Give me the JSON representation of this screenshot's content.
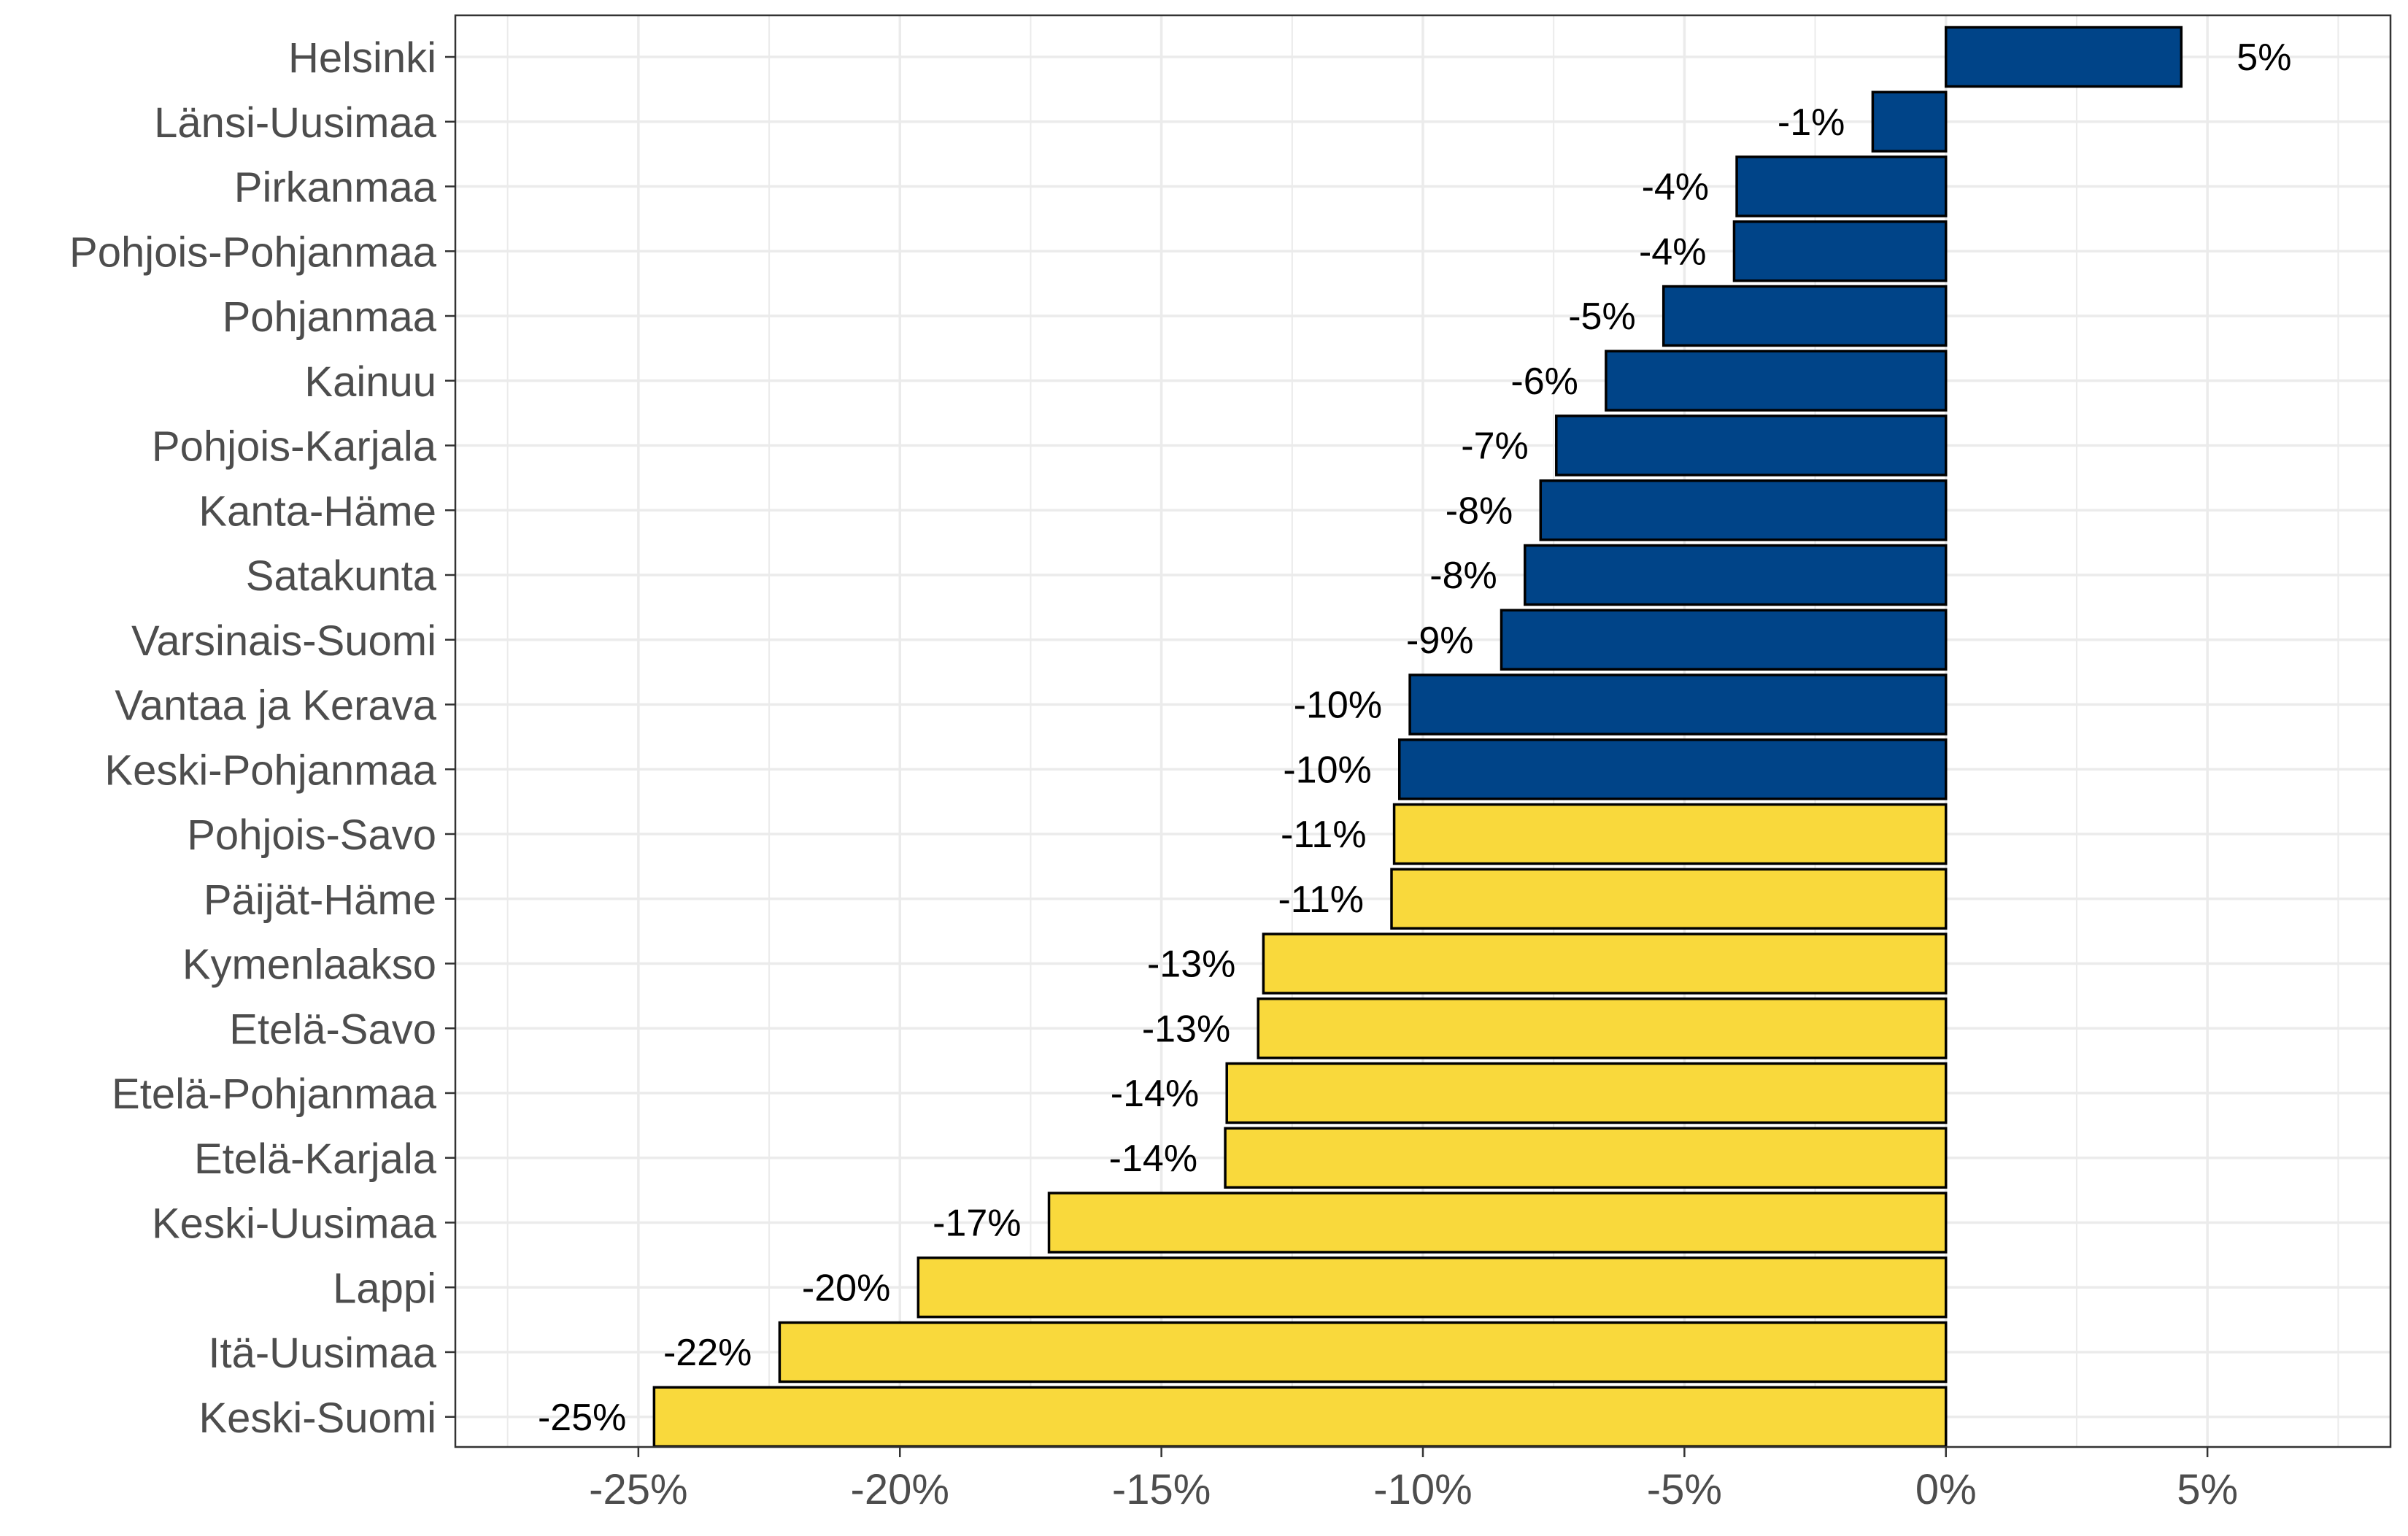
{
  "chart_data": {
    "type": "bar",
    "orientation": "horizontal",
    "title": "",
    "xlabel": "",
    "ylabel": "",
    "xlim": [
      -0.285,
      0.085
    ],
    "x_ticks": [
      -0.25,
      -0.2,
      -0.15,
      -0.1,
      -0.05,
      0,
      0.05
    ],
    "x_tick_labels": [
      "-25%",
      "-20%",
      "-15%",
      "-10%",
      "-5%",
      "0%",
      "5%"
    ],
    "grid": true,
    "legend": "none",
    "colors": {
      "positive_group": "#004488",
      "negative_group": "#f9d93c",
      "bar_outline": "#000000",
      "grid": "#ebebeb",
      "panel_border": "#333333"
    },
    "categories": [
      "Helsinki",
      "Länsi-Uusimaa",
      "Pirkanmaa",
      "Pohjois-Pohjanmaa",
      "Pohjanmaa",
      "Kainuu",
      "Pohjois-Karjala",
      "Kanta-Häme",
      "Satakunta",
      "Varsinais-Suomi",
      "Vantaa ja Kerava",
      "Keski-Pohjanmaa",
      "Pohjois-Savo",
      "Päijät-Häme",
      "Kymenlaakso",
      "Etelä-Savo",
      "Etelä-Pohjanmaa",
      "Etelä-Karjala",
      "Keski-Uusimaa",
      "Lappi",
      "Itä-Uusimaa",
      "Keski-Suomi"
    ],
    "values": [
      0.045,
      -0.014,
      -0.04,
      -0.0405,
      -0.054,
      -0.065,
      -0.0745,
      -0.0775,
      -0.0805,
      -0.085,
      -0.1025,
      -0.1045,
      -0.1055,
      -0.106,
      -0.1305,
      -0.1315,
      -0.1375,
      -0.1378,
      -0.1715,
      -0.1965,
      -0.223,
      -0.247
    ],
    "labels": [
      "5%",
      "-1%",
      "-4%",
      "-4%",
      "-5%",
      "-6%",
      "-7%",
      "-8%",
      "-8%",
      "-9%",
      "-10%",
      "-10%",
      "-11%",
      "-11%",
      "-13%",
      "-13%",
      "-14%",
      "-14%",
      "-17%",
      "-20%",
      "-22%",
      "-25%"
    ],
    "groups": [
      "blue",
      "blue",
      "blue",
      "blue",
      "blue",
      "blue",
      "blue",
      "blue",
      "blue",
      "blue",
      "blue",
      "blue",
      "yellow",
      "yellow",
      "yellow",
      "yellow",
      "yellow",
      "yellow",
      "yellow",
      "yellow",
      "yellow",
      "yellow"
    ]
  }
}
